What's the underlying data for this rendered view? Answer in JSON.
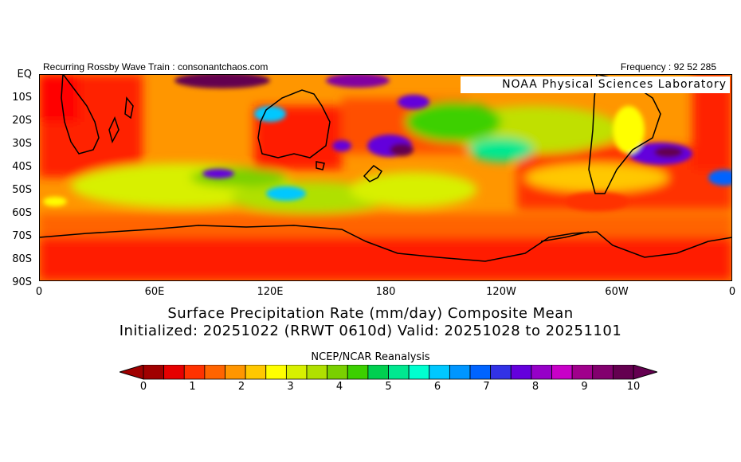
{
  "header": {
    "left_text": "Recurring Rossby Wave Train : consonantchaos.com",
    "right_text": "Frequency : 92 52 285"
  },
  "map": {
    "attribution": "NOAA Physical Sciences Laboratory",
    "lat_labels": [
      "EQ",
      "10S",
      "20S",
      "30S",
      "40S",
      "50S",
      "60S",
      "70S",
      "80S",
      "90S"
    ],
    "lon_labels": [
      "0",
      "60E",
      "120E",
      "180",
      "120W",
      "60W",
      "0"
    ],
    "lat_range": [
      0,
      -90
    ],
    "lon_range": [
      0,
      360
    ]
  },
  "title": {
    "line1": "Surface Precipitation Rate (mm/day) Composite Mean",
    "line2": "Initialized: 20251022 (RRWT 0610d) Valid: 20251028 to 20251101"
  },
  "source": "NCEP/NCAR Reanalysis",
  "colorbar": {
    "ticks": [
      "0",
      "1",
      "2",
      "3",
      "4",
      "5",
      "6",
      "7",
      "8",
      "9",
      "10"
    ],
    "colors": [
      "#a00000",
      "#e60000",
      "#ff3200",
      "#ff6400",
      "#ff9600",
      "#ffc800",
      "#ffff00",
      "#d8f000",
      "#b0e000",
      "#7ad000",
      "#3cd000",
      "#00d050",
      "#00e890",
      "#00ffd0",
      "#00c8ff",
      "#0096ff",
      "#0064ff",
      "#3232e6",
      "#6400dc",
      "#9600c8",
      "#c800c8",
      "#a0008c",
      "#82006e",
      "#640050"
    ]
  }
}
